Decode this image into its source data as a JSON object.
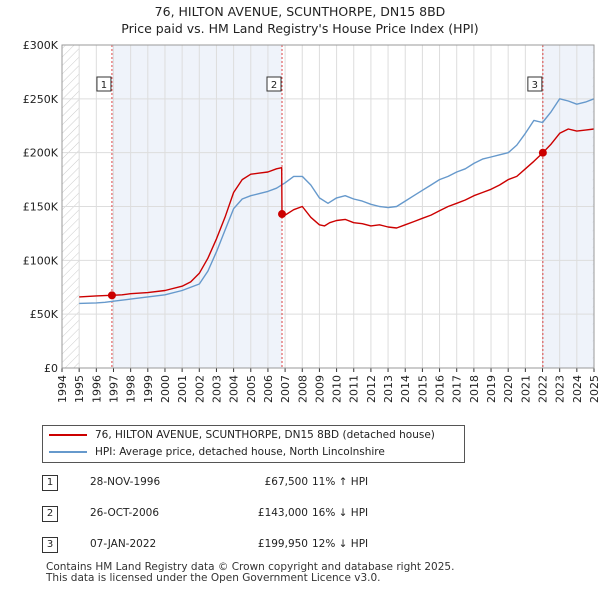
{
  "header": {
    "title": "76, HILTON AVENUE, SCUNTHORPE, DN15 8BD",
    "subtitle": "Price paid vs. HM Land Registry's House Price Index (HPI)"
  },
  "chart_data": {
    "type": "line",
    "title": "76, HILTON AVENUE, SCUNTHORPE, DN15 8BD",
    "subtitle": "Price paid vs. HM Land Registry's House Price Index (HPI)",
    "xlabel": "",
    "ylabel": "",
    "xlim": [
      1994,
      2025
    ],
    "ylim": [
      0,
      300000
    ],
    "yticks": [
      0,
      50000,
      100000,
      150000,
      200000,
      250000,
      300000
    ],
    "ytick_labels": [
      "£0",
      "£50K",
      "£100K",
      "£150K",
      "£200K",
      "£250K",
      "£300K"
    ],
    "xticks": [
      "1994",
      "1995",
      "1996",
      "1997",
      "1998",
      "1999",
      "2000",
      "2001",
      "2002",
      "2003",
      "2004",
      "2005",
      "2006",
      "2007",
      "2008",
      "2009",
      "2010",
      "2011",
      "2012",
      "2013",
      "2014",
      "2015",
      "2016",
      "2017",
      "2018",
      "2019",
      "2020",
      "2021",
      "2022",
      "2023",
      "2024",
      "2025"
    ],
    "grid": true,
    "hatched_regions": [
      [
        1994,
        1995
      ],
      [
        2024.9,
        2025
      ]
    ],
    "series": [
      {
        "name": "76, HILTON AVENUE, SCUNTHORPE, DN15 8BD (detached house)",
        "color": "#cc0000",
        "x": [
          1995.0,
          1995.5,
          1996.0,
          1996.5,
          1996.91,
          1997.5,
          1998.0,
          1999.0,
          2000.0,
          2001.0,
          2001.5,
          2002.0,
          2002.5,
          2003.0,
          2003.5,
          2004.0,
          2004.5,
          2005.0,
          2005.5,
          2006.0,
          2006.5,
          2006.8,
          2006.82,
          2007.0,
          2007.5,
          2008.0,
          2008.5,
          2009.0,
          2009.3,
          2009.6,
          2010.0,
          2010.5,
          2011.0,
          2011.5,
          2012.0,
          2012.5,
          2013.0,
          2013.5,
          2014.0,
          2014.5,
          2015.0,
          2015.5,
          2016.0,
          2016.5,
          2017.0,
          2017.5,
          2018.0,
          2018.5,
          2019.0,
          2019.5,
          2020.0,
          2020.5,
          2021.0,
          2021.5,
          2022.02,
          2022.5,
          2023.0,
          2023.5,
          2024.0,
          2024.5,
          2025.0
        ],
        "y": [
          66000,
          66500,
          67000,
          67200,
          67500,
          68000,
          69000,
          70000,
          72000,
          76000,
          80000,
          88000,
          102000,
          120000,
          140000,
          163000,
          175000,
          180000,
          181000,
          182000,
          185000,
          186000,
          143000,
          142000,
          147000,
          150000,
          140000,
          133000,
          132000,
          135000,
          137000,
          138000,
          135000,
          134000,
          132000,
          133000,
          131000,
          130000,
          133000,
          136000,
          139000,
          142000,
          146000,
          150000,
          153000,
          156000,
          160000,
          163000,
          166000,
          170000,
          175000,
          178000,
          185000,
          192000,
          199950,
          208000,
          218000,
          222000,
          220000,
          221000,
          222000
        ]
      },
      {
        "name": "HPI: Average price, detached house, North Lincolnshire",
        "color": "#6699cc",
        "x": [
          1995.0,
          1995.5,
          1996.0,
          1996.5,
          1997.0,
          1998.0,
          1999.0,
          2000.0,
          2001.0,
          2002.0,
          2002.5,
          2003.0,
          2003.5,
          2004.0,
          2004.5,
          2005.0,
          2005.5,
          2006.0,
          2006.5,
          2007.0,
          2007.5,
          2008.0,
          2008.5,
          2009.0,
          2009.5,
          2010.0,
          2010.5,
          2011.0,
          2011.5,
          2012.0,
          2012.5,
          2013.0,
          2013.5,
          2014.0,
          2014.5,
          2015.0,
          2015.5,
          2016.0,
          2016.5,
          2017.0,
          2017.5,
          2018.0,
          2018.5,
          2019.0,
          2019.5,
          2020.0,
          2020.5,
          2021.0,
          2021.5,
          2022.0,
          2022.5,
          2023.0,
          2023.5,
          2024.0,
          2024.5,
          2025.0
        ],
        "y": [
          60000,
          60200,
          60500,
          61000,
          62000,
          64000,
          66000,
          68000,
          72000,
          78000,
          90000,
          108000,
          128000,
          148000,
          157000,
          160000,
          162000,
          164000,
          167000,
          172000,
          178000,
          178000,
          170000,
          158000,
          153000,
          158000,
          160000,
          157000,
          155000,
          152000,
          150000,
          149000,
          150000,
          155000,
          160000,
          165000,
          170000,
          175000,
          178000,
          182000,
          185000,
          190000,
          194000,
          196000,
          198000,
          200000,
          207000,
          218000,
          230000,
          228000,
          238000,
          250000,
          248000,
          245000,
          247000,
          250000
        ]
      }
    ],
    "sales": [
      {
        "label": "1",
        "x": 1996.91,
        "y": 67500
      },
      {
        "label": "2",
        "x": 2006.82,
        "y": 143000
      },
      {
        "label": "3",
        "x": 2022.02,
        "y": 199950
      }
    ]
  },
  "legend": {
    "property_label": "76, HILTON AVENUE, SCUNTHORPE, DN15 8BD (detached house)",
    "hpi_label": "HPI: Average price, detached house, North Lincolnshire"
  },
  "transactions": [
    {
      "num": "1",
      "date": "28-NOV-1996",
      "price": "£67,500",
      "delta": "11% ↑ HPI"
    },
    {
      "num": "2",
      "date": "26-OCT-2006",
      "price": "£143,000",
      "delta": "16% ↓ HPI"
    },
    {
      "num": "3",
      "date": "07-JAN-2022",
      "price": "£199,950",
      "delta": "12% ↓ HPI"
    }
  ],
  "footer": {
    "line1": "Contains HM Land Registry data © Crown copyright and database right 2025.",
    "line2": "This data is licensed under the Open Government Licence v3.0."
  }
}
